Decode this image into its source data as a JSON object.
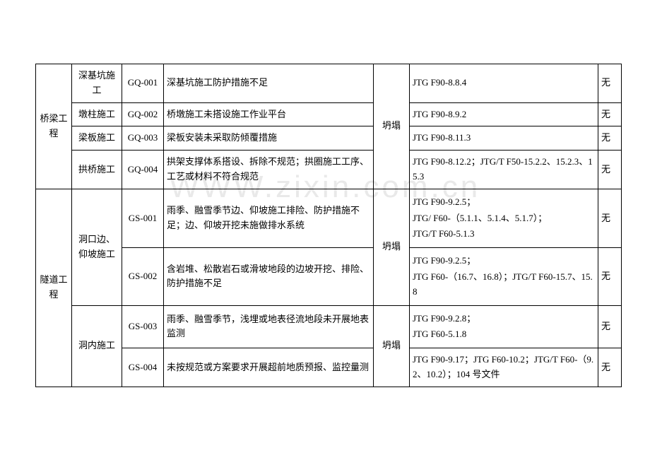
{
  "watermark": "WWW.zixin.com.cn",
  "categories": [
    {
      "name": "桥梁工程",
      "rows": [
        {
          "sub": "深基坑施工",
          "code": "GQ-001",
          "desc": "深基坑施工防护措施不足",
          "hazard": "坍塌",
          "ref": "JTG F90-8.8.4",
          "last": "无"
        },
        {
          "sub": "墩柱施工",
          "code": "GQ-002",
          "desc": "桥墩施工未搭设施工作业平台",
          "ref": "JTG F90-8.9.2",
          "last": "无"
        },
        {
          "sub": "梁板施工",
          "code": "GQ-003",
          "desc": "梁板安装未采取防倾覆措施",
          "ref": "JTG F90-8.11.3",
          "last": "无"
        },
        {
          "sub": "拱桥施工",
          "code": "GQ-004",
          "desc": "拱架支撑体系搭设、拆除不规范；拱圈施工工序、工艺或材料不符合规范",
          "ref": "JTG F90-8.12.2；JTG/T F50-15.2.2、15.2.3、15.3",
          "last": "无"
        }
      ]
    },
    {
      "name": "隧道工程",
      "rows": [
        {
          "sub": "洞口边、仰坡施工",
          "code": "GS-001",
          "desc": "雨季、融雪季节边、仰坡施工排险、防护措施不足；边、仰坡开挖未施做排水系统",
          "hazard": "坍塌",
          "ref_multi": [
            "JTG F90-9.2.5；",
            "JTG/ F60-（5.1.1、5.1.4、5.1.7）；",
            "JTG/T F60-5.1.3"
          ],
          "last": "无"
        },
        {
          "code": "GS-002",
          "desc": "含岩堆、松散岩石或滑坡地段的边坡开挖、排险、防护措施不足",
          "ref_multi": [
            "JTG F90-9.2.5；",
            "JTG F60-（16.7、16.8）；JTG/T F60-15.7、15.8"
          ],
          "last": "无"
        },
        {
          "sub": "洞内施工",
          "code": "GS-003",
          "desc": "雨季、融雪季节，浅埋或地表径流地段未开展地表监测",
          "hazard": "坍塌",
          "ref_multi": [
            "JTG F90-9.2.8；",
            "JTG F60-5.1.8"
          ],
          "last": "无"
        },
        {
          "code": "GS-004",
          "desc": "未按规范或方案要求开展超前地质预报、监控量测",
          "ref": "JTG F90-9.17；JTG F60-10.2；JTG/T F60-（9.2、10.2）；104 号文件",
          "last": "无"
        }
      ]
    }
  ]
}
